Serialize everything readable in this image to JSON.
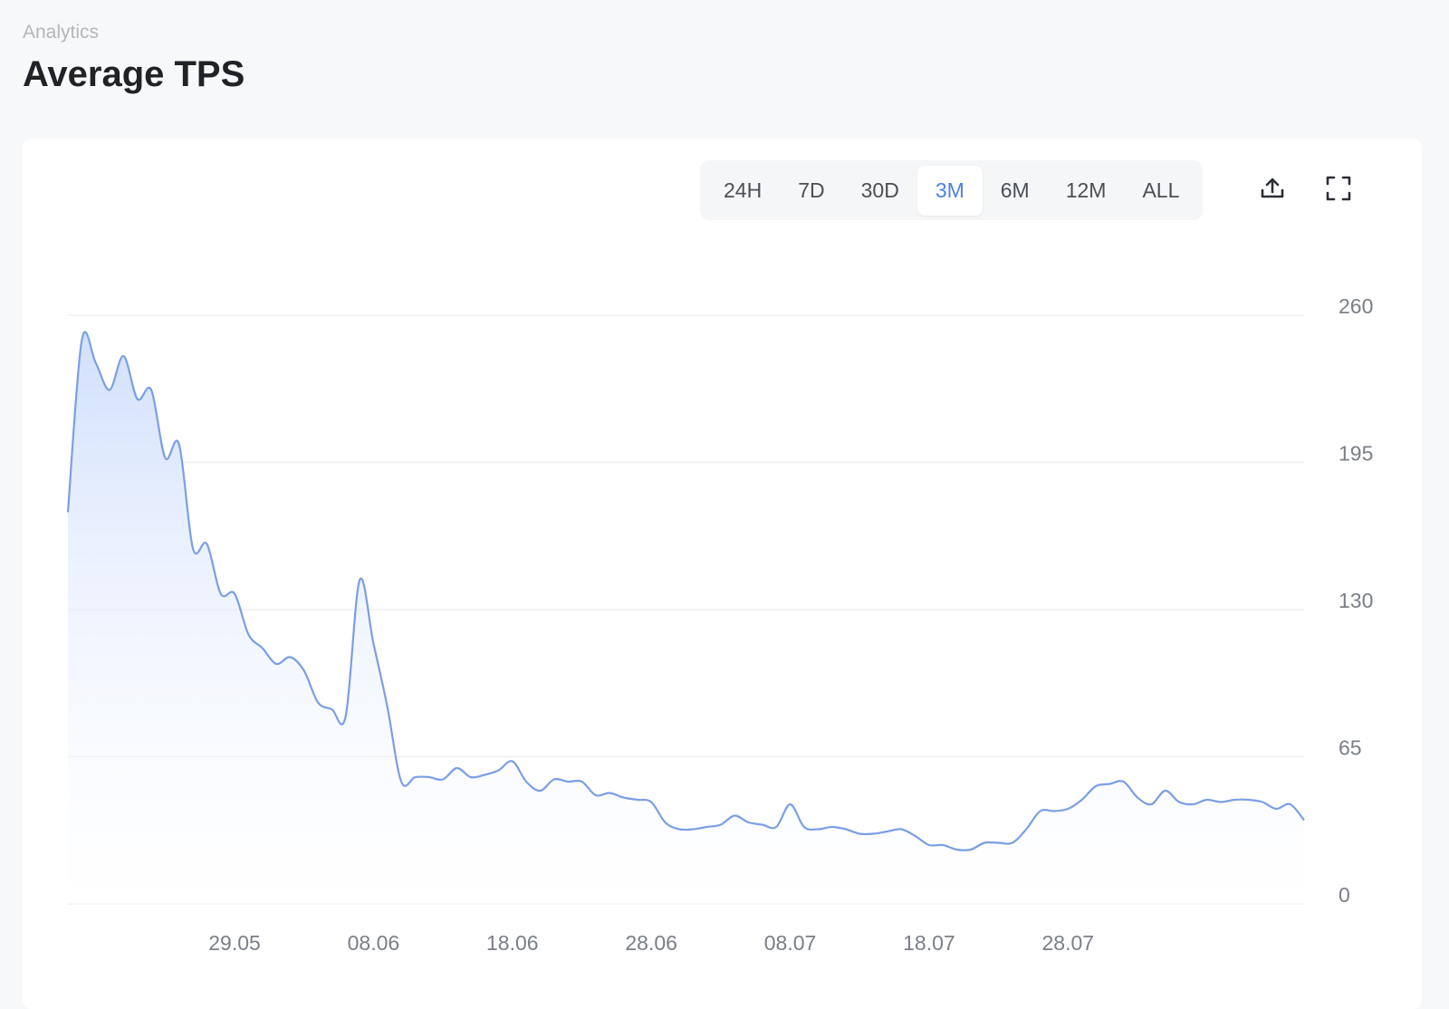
{
  "header": {
    "section": "Analytics",
    "title": "Average TPS"
  },
  "range_buttons": {
    "labels": [
      "24H",
      "7D",
      "30D",
      "3M",
      "6M",
      "12M",
      "ALL"
    ],
    "active": "3M"
  },
  "chart_data": {
    "type": "area",
    "color": "#7b9fe3",
    "categories": [
      null,
      null,
      null,
      null,
      null,
      null,
      null,
      null,
      null,
      null,
      null,
      null,
      "29.05",
      null,
      null,
      null,
      null,
      null,
      null,
      null,
      null,
      null,
      "08.06",
      null,
      null,
      null,
      null,
      null,
      null,
      null,
      null,
      null,
      "18.06",
      null,
      null,
      null,
      null,
      null,
      null,
      null,
      null,
      null,
      "28.06",
      null,
      null,
      null,
      null,
      null,
      null,
      null,
      null,
      null,
      "08.07",
      null,
      null,
      null,
      null,
      null,
      null,
      null,
      null,
      null,
      "18.07",
      null,
      null,
      null,
      null,
      null,
      null,
      null,
      null,
      null,
      "28.07",
      null,
      null,
      null,
      null,
      null,
      null,
      null,
      null,
      null,
      null,
      null,
      null,
      null,
      null,
      null,
      null,
      null
    ],
    "values": [
      173,
      249,
      239,
      227,
      242,
      223,
      227,
      197,
      203,
      157,
      159,
      137,
      137,
      119,
      113,
      106,
      109,
      103,
      89,
      86,
      83,
      143,
      115,
      87,
      54,
      56,
      56,
      55,
      60,
      56,
      57,
      59,
      63,
      54,
      50,
      55,
      54,
      54,
      48,
      49,
      47,
      46,
      45,
      36,
      33,
      33,
      34,
      35,
      39,
      36,
      35,
      34,
      44,
      34,
      33,
      34,
      33,
      31,
      31,
      32,
      33,
      30,
      26,
      26,
      24,
      24,
      27,
      27,
      27,
      33,
      41,
      41,
      42,
      46,
      52,
      53,
      54,
      47,
      44,
      50,
      45,
      44,
      46,
      45,
      46,
      46,
      45,
      42,
      44,
      37
    ],
    "ylim": [
      0,
      260
    ],
    "yticks": [
      0,
      65,
      130,
      195,
      260
    ],
    "grid": true
  }
}
